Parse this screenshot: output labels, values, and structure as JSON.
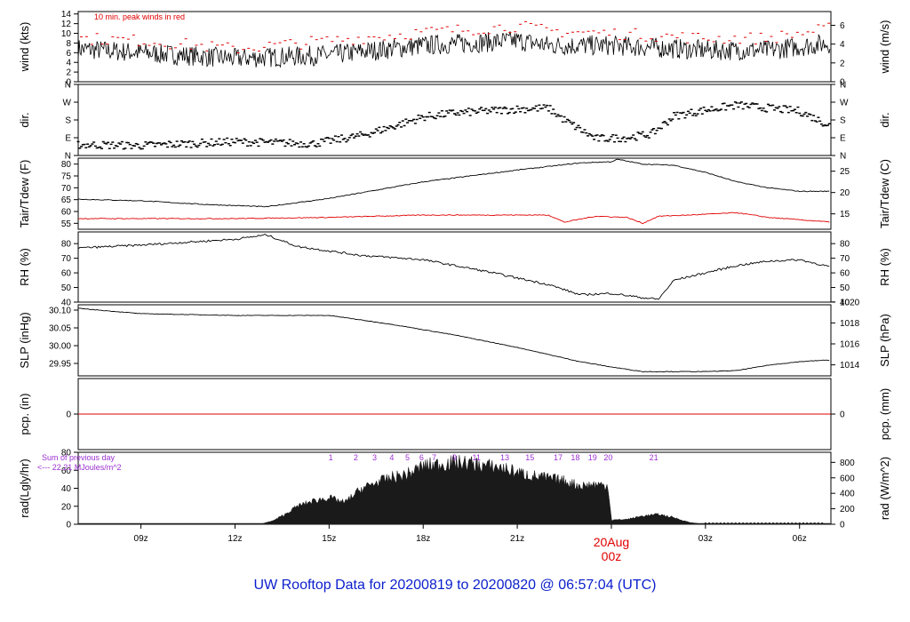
{
  "colors": {
    "peak": "#e00000",
    "dew": "#e00000",
    "purple": "#9b30d0",
    "title": "#0a1ecc",
    "date": "#e00000",
    "ink": "#000000"
  },
  "footer": {
    "title": "UW Rooftop Data for 20200819  to  20200820 @ 06:57:04  (UTC)"
  },
  "time_axis": {
    "ticks": [
      {
        "label": "09z",
        "hour": 9
      },
      {
        "label": "12z",
        "hour": 12
      },
      {
        "label": "15z",
        "hour": 15
      },
      {
        "label": "18z",
        "hour": 18
      },
      {
        "label": "21z",
        "hour": 21
      },
      {
        "label": "03z",
        "hour": 27
      },
      {
        "label": "06z",
        "hour": 30
      }
    ],
    "date_label": "20Aug",
    "date_hour_label": "00z",
    "date_hour": 24,
    "range": [
      7.0,
      31.0
    ]
  },
  "chart_data": [
    {
      "type": "line",
      "ylabel": "wind (kts)",
      "ylabel_right": "wind (m/s)",
      "annotation": "10 min. peak winds in red",
      "ylim": [
        0,
        14.5
      ],
      "yticks": [
        0,
        2,
        4,
        6,
        8,
        10,
        12,
        14
      ],
      "right_ticks": [
        {
          "label": "0",
          "v": 0
        },
        {
          "label": "2",
          "v": 3.89
        },
        {
          "label": "4",
          "v": 7.78
        },
        {
          "label": "6",
          "v": 11.66
        }
      ],
      "series": [
        {
          "x": [
            7.0,
            9.0,
            12.0,
            15.0,
            18.0,
            21.0,
            22.0,
            24.0,
            27.0,
            29.0,
            31.0
          ],
          "values": [
            6.8,
            6.0,
            4.8,
            5.5,
            7.5,
            8.5,
            7.5,
            7.5,
            6.5,
            6.5,
            8.0
          ]
        },
        {
          "x": [
            7.0,
            9.0,
            12.0,
            15.0,
            18.0,
            21.0,
            22.0,
            24.0,
            27.0,
            29.0,
            31.0
          ],
          "values": [
            9.0,
            8.5,
            6.8,
            8.5,
            10.2,
            11.5,
            10.5,
            10.0,
            9.0,
            9.0,
            11.0
          ]
        }
      ]
    },
    {
      "type": "scatter",
      "ylabel": "dir.",
      "ylabel_right": "dir.",
      "ylim": [
        0,
        360
      ],
      "yticks": [
        {
          "label": "N",
          "v": 0
        },
        {
          "label": "E",
          "v": 90
        },
        {
          "label": "S",
          "v": 180
        },
        {
          "label": "W",
          "v": 270
        },
        {
          "label": "N",
          "v": 360
        }
      ],
      "series": [
        {
          "x": [
            7.0,
            9.0,
            12.0,
            14.5,
            16.0,
            17.0,
            18.0,
            19.0,
            21.0,
            22.0,
            22.5,
            23.5,
            24.5,
            25.3,
            26.0,
            27.0,
            28.0,
            30.0,
            31.0
          ],
          "values": [
            55,
            50,
            70,
            60,
            100,
            145,
            195,
            215,
            235,
            240,
            180,
            85,
            90,
            110,
            200,
            230,
            255,
            225,
            150
          ]
        }
      ]
    },
    {
      "type": "line",
      "ylabel": "Tair/Tdew (F)",
      "ylabel_right": "Tair/Tdew (C)",
      "ylim": [
        52.5,
        82.5
      ],
      "yticks": [
        55,
        60,
        65,
        70,
        75,
        80
      ],
      "right_ticks": [
        {
          "label": "15",
          "v": 59
        },
        {
          "label": "20",
          "v": 68
        },
        {
          "label": "25",
          "v": 77
        }
      ],
      "series": [
        {
          "x": [
            7.0,
            9.0,
            11.0,
            13.0,
            15.0,
            18.0,
            21.0,
            23.0,
            24.0,
            24.2,
            25.0,
            26.0,
            27.0,
            28.0,
            29.0,
            30.0,
            31.0
          ],
          "values": [
            65.2,
            64.5,
            63.0,
            62.0,
            65.5,
            72.5,
            77.5,
            80.5,
            81.0,
            82.0,
            80.0,
            79.5,
            76.5,
            72.5,
            70.0,
            68.5,
            68.5
          ]
        },
        {
          "x": [
            7.0,
            12.0,
            15.0,
            18.0,
            21.0,
            22.0,
            22.5,
            23.5,
            24.5,
            25.0,
            25.5,
            26.5,
            28.0,
            29.0,
            31.0
          ],
          "values": [
            57.0,
            57.0,
            57.5,
            58.5,
            58.5,
            58.5,
            55.5,
            58.0,
            57.5,
            55.0,
            58.0,
            58.5,
            59.5,
            57.5,
            55.5
          ]
        }
      ]
    },
    {
      "type": "line",
      "ylabel": "RH (%)",
      "ylabel_right": "RH (%)",
      "ylim": [
        40,
        88
      ],
      "yticks": [
        40,
        50,
        60,
        70,
        80
      ],
      "right_ticks": [
        {
          "label": "40",
          "v": 40
        },
        {
          "label": "50",
          "v": 50
        },
        {
          "label": "60",
          "v": 60
        },
        {
          "label": "70",
          "v": 70
        },
        {
          "label": "80",
          "v": 80
        }
      ],
      "series": [
        {
          "x": [
            7.0,
            9.0,
            12.0,
            13.0,
            14.0,
            16.0,
            18.0,
            20.0,
            22.0,
            23.0,
            24.0,
            25.0,
            25.5,
            26.0,
            27.0,
            28.0,
            29.0,
            30.0,
            31.0
          ],
          "values": [
            77.0,
            79.0,
            83.0,
            86.0,
            78.0,
            72.0,
            69.0,
            61.0,
            52.0,
            45.0,
            46.0,
            43.0,
            42.0,
            55.0,
            60.0,
            65.0,
            68.0,
            69.0,
            64.0
          ]
        }
      ]
    },
    {
      "type": "line",
      "ylabel": "SLP (inHg)",
      "ylabel_right": "SLP (hPa)",
      "ylim": [
        29.915,
        30.115
      ],
      "yticks": [
        29.95,
        30.0,
        30.05,
        30.1
      ],
      "right_ticks": [
        {
          "label": "1014",
          "v": 29.946
        },
        {
          "label": "1016",
          "v": 30.005
        },
        {
          "label": "1018",
          "v": 30.064
        },
        {
          "label": "1020",
          "v": 30.123
        }
      ],
      "series": [
        {
          "x": [
            7.0,
            9.0,
            12.0,
            15.0,
            17.0,
            19.0,
            21.0,
            23.0,
            24.0,
            25.0,
            27.0,
            28.0,
            29.0,
            30.0,
            31.0
          ],
          "values": [
            30.105,
            30.09,
            30.085,
            30.085,
            30.06,
            30.03,
            29.995,
            29.955,
            29.94,
            29.927,
            29.927,
            29.93,
            29.945,
            29.955,
            29.96
          ]
        }
      ]
    },
    {
      "type": "line",
      "ylabel": "pcp. (in)",
      "ylabel_right": "pcp. (mm)",
      "ylim": [
        -1,
        1
      ],
      "yticks": [
        0
      ],
      "right_ticks": [
        {
          "label": "0",
          "v": 0
        }
      ],
      "series": [
        {
          "x": [
            7.0,
            31.0
          ],
          "values": [
            0,
            0
          ]
        }
      ]
    },
    {
      "type": "area",
      "ylabel": "rad(Lgly/hr)",
      "ylabel_right": "rad (W/m^2)",
      "annotation": [
        "Sum of previous day",
        "<--- 22.21 MJoules/m^2"
      ],
      "ylim": [
        0,
        80
      ],
      "yticks": [
        0,
        20,
        40,
        60,
        80
      ],
      "right_ticks": [
        {
          "label": "0",
          "v": 0
        },
        {
          "label": "200",
          "v": 17.2
        },
        {
          "label": "400",
          "v": 34.4
        },
        {
          "label": "600",
          "v": 51.6
        },
        {
          "label": "800",
          "v": 68.8
        }
      ],
      "hour_labels": [
        "1",
        "2",
        "3",
        "4",
        "5",
        "6",
        "7",
        "9",
        "11",
        "13",
        "15",
        "17",
        "18",
        "19",
        "20",
        "21"
      ],
      "hour_label_x": [
        15.05,
        15.85,
        16.45,
        17.0,
        17.5,
        17.95,
        18.35,
        19.0,
        19.7,
        20.6,
        21.4,
        22.3,
        22.85,
        23.4,
        23.9,
        25.35
      ],
      "series": [
        {
          "x": [
            7.0,
            12.8,
            13.2,
            13.6,
            14.0,
            14.5,
            15.0,
            15.5,
            16.0,
            16.5,
            17.0,
            17.5,
            18.0,
            18.5,
            19.0,
            19.5,
            20.0,
            20.5,
            21.0,
            21.5,
            22.0,
            22.5,
            23.0,
            23.5,
            23.9,
            24.0,
            24.5,
            25.0,
            25.5,
            26.0,
            26.5,
            27.0,
            31.0
          ],
          "values": [
            0,
            0,
            4,
            12,
            22,
            28,
            32,
            26,
            42,
            50,
            56,
            60,
            70,
            72,
            74,
            73,
            70,
            68,
            62,
            58,
            55,
            52,
            46,
            48,
            46,
            5,
            6,
            10,
            12,
            8,
            2,
            0,
            0
          ]
        }
      ]
    }
  ]
}
